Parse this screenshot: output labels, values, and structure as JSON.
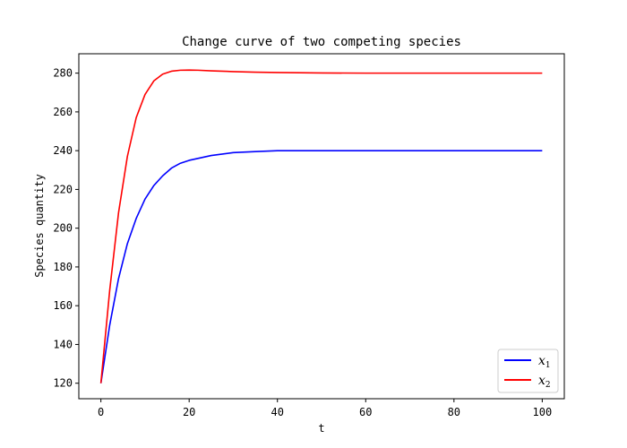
{
  "chart_data": {
    "type": "line",
    "title": "Change curve of two competing species",
    "xlabel": "t",
    "ylabel": "Species quantity",
    "xlim": [
      -5,
      105
    ],
    "ylim": [
      112,
      290
    ],
    "x_ticks": [
      0,
      20,
      40,
      60,
      80,
      100
    ],
    "y_ticks": [
      120,
      140,
      160,
      180,
      200,
      220,
      240,
      260,
      280
    ],
    "grid": false,
    "legend_position": "lower right",
    "series": [
      {
        "name": "x",
        "subscript": "1",
        "color": "#0000ff",
        "x": [
          0,
          2,
          4,
          6,
          8,
          10,
          12,
          14,
          16,
          18,
          20,
          25,
          30,
          35,
          40,
          50,
          60,
          70,
          80,
          90,
          100
        ],
        "y": [
          120,
          150,
          174,
          192,
          205,
          215,
          222,
          227,
          231,
          233.5,
          235,
          237.5,
          239,
          239.5,
          240,
          240,
          240,
          240,
          240,
          240,
          240
        ]
      },
      {
        "name": "x",
        "subscript": "2",
        "color": "#ff0000",
        "x": [
          0,
          2,
          4,
          6,
          8,
          10,
          12,
          14,
          16,
          18,
          20,
          22,
          25,
          30,
          35,
          40,
          50,
          60,
          70,
          80,
          90,
          100
        ],
        "y": [
          120,
          168,
          208,
          237,
          257,
          269,
          276,
          279.5,
          281,
          281.5,
          281.6,
          281.5,
          281.2,
          280.8,
          280.5,
          280.3,
          280.1,
          280,
          280,
          280,
          280,
          280
        ]
      }
    ]
  }
}
